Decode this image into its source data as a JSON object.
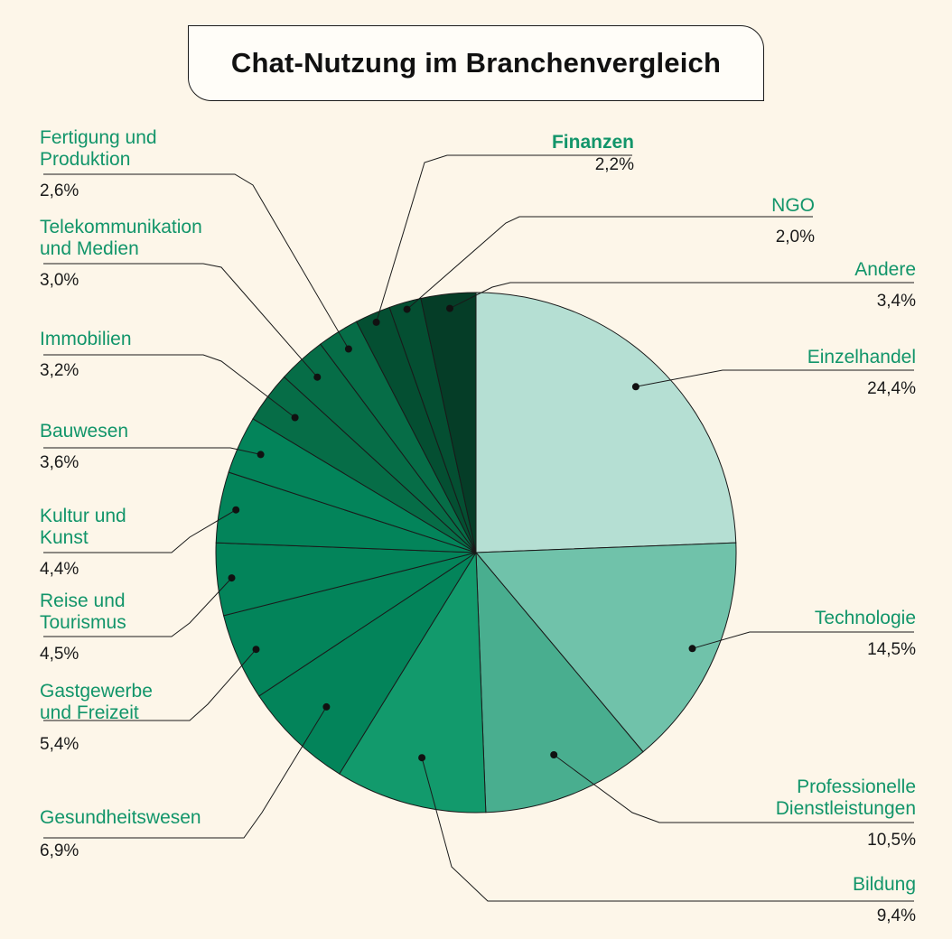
{
  "title": "Chat-Nutzung im Branchenvergleich",
  "chart_data": {
    "type": "pie",
    "title": "Chat-Nutzung im Branchenvergleich",
    "unit": "%",
    "start": "12 o'clock, clockwise",
    "slices": [
      {
        "label": "Einzelhandel",
        "value": 24.4,
        "display": "24,4%",
        "color": "#b5dfd3"
      },
      {
        "label": "Technologie",
        "value": 14.5,
        "display": "14,5%",
        "color": "#70c2aa"
      },
      {
        "label": "Professionelle Dienstleistungen",
        "value": 10.5,
        "display": "10,5%",
        "color": "#49ae8f"
      },
      {
        "label": "Bildung",
        "value": 9.4,
        "display": "9,4%",
        "color": "#129a6c"
      },
      {
        "label": "Gesundheitswesen",
        "value": 6.9,
        "display": "6,9%",
        "color": "#03845a"
      },
      {
        "label": "Gastgewerbe und Freizeit",
        "value": 5.4,
        "display": "5,4%",
        "color": "#03845a"
      },
      {
        "label": "Reise und Tourismus",
        "value": 4.5,
        "display": "4,5%",
        "color": "#03845a"
      },
      {
        "label": "Kultur und Kunst",
        "value": 4.4,
        "display": "4,4%",
        "color": "#03845a"
      },
      {
        "label": "Bauwesen",
        "value": 3.6,
        "display": "3,6%",
        "color": "#03845a"
      },
      {
        "label": "Immobilien",
        "value": 3.2,
        "display": "3,2%",
        "color": "#066d47"
      },
      {
        "label": "Telekommunikation und Medien",
        "value": 3.0,
        "display": "3,0%",
        "color": "#066d47"
      },
      {
        "label": "Fertigung und Produktion",
        "value": 2.6,
        "display": "2,6%",
        "color": "#066d47"
      },
      {
        "label": "Finanzen",
        "value": 2.2,
        "display": "2,2%",
        "color": "#044f32"
      },
      {
        "label": "NGO",
        "value": 2.0,
        "display": "2,0%",
        "color": "#044f32"
      },
      {
        "label": "Andere",
        "value": 3.4,
        "display": "3,4%",
        "color": "#053d27"
      }
    ],
    "labels": {
      "einzelhandel": "Einzelhandel",
      "technologie": "Technologie",
      "professionelle_l1": "Professionelle",
      "professionelle_l2": "Dienstleistungen",
      "bildung": "Bildung",
      "gesundheitswesen": "Gesundheitswesen",
      "gastgewerbe_l1": "Gastgewerbe",
      "gastgewerbe_l2": "und Freizeit",
      "reise_l1": "Reise und",
      "reise_l2": "Tourismus",
      "kultur_l1": "Kultur und",
      "kultur_l2": "Kunst",
      "bauwesen": "Bauwesen",
      "immobilien": "Immobilien",
      "telekom_l1": "Telekommunikation",
      "telekom_l2": "und Medien",
      "fertigung_l1": "Fertigung und",
      "fertigung_l2": "Produktion",
      "finanzen": "Finanzen",
      "ngo": "NGO",
      "andere": "Andere"
    }
  }
}
